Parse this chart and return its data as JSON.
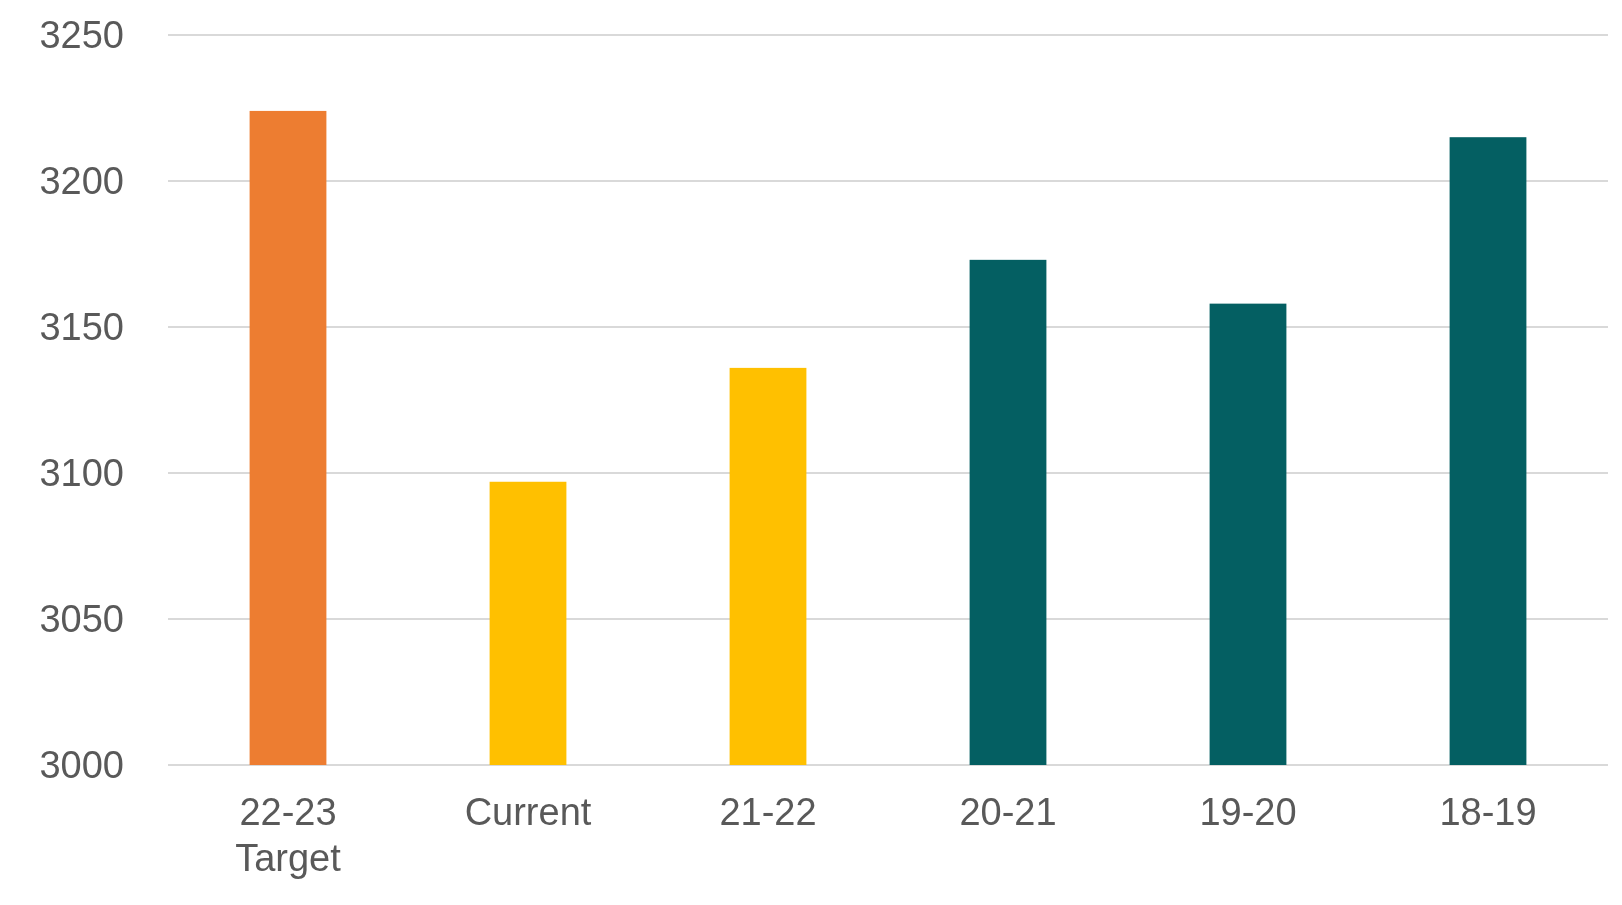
{
  "chart_data": {
    "type": "bar",
    "categories": [
      "22-23 Target",
      "Current",
      "21-22",
      "20-21",
      "19-20",
      "18-19"
    ],
    "values": [
      3224,
      3097,
      3136,
      3173,
      3158,
      3215
    ],
    "colors": [
      "#ed7d31",
      "#ffc000",
      "#ffc000",
      "#045f62",
      "#045f62",
      "#045f62"
    ],
    "ylim": [
      3000,
      3250
    ],
    "yticks": [
      3000,
      3050,
      3100,
      3150,
      3200,
      3250
    ],
    "grid": "y"
  }
}
